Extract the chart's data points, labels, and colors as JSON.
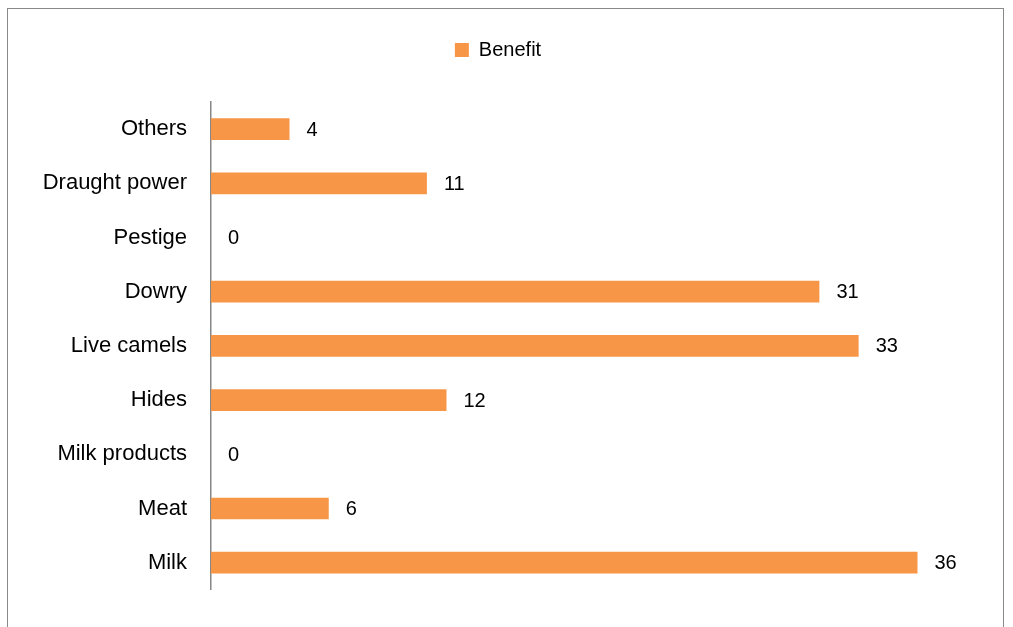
{
  "chart_data": {
    "type": "bar",
    "orientation": "horizontal",
    "categories": [
      "Others",
      "Draught power",
      "Pestige",
      "Dowry",
      "Live camels",
      "Hides",
      "Milk products",
      "Meat",
      "Milk"
    ],
    "series": [
      {
        "name": "Benefit",
        "color": "#f79646",
        "values": [
          4,
          11,
          0,
          31,
          33,
          12,
          0,
          6,
          36
        ]
      }
    ],
    "data_labels": true,
    "legend": "top",
    "tick_labels": "y"
  }
}
